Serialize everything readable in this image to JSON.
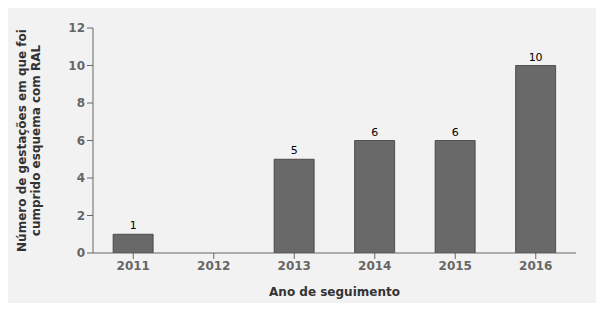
{
  "chart_data": {
    "type": "bar",
    "categories": [
      "2011",
      "2012",
      "2013",
      "2014",
      "2015",
      "2016"
    ],
    "values": [
      1,
      0,
      5,
      6,
      6,
      10
    ],
    "color": "#696969",
    "xlabel": "Ano de seguimento",
    "ylabel": "Número de gestações em que foi\ncumprido esquema com RAL",
    "ylim": [
      0,
      12
    ],
    "yticks": [
      0,
      2,
      4,
      6,
      8,
      10,
      12
    ],
    "grid": false,
    "data_labels": true
  }
}
